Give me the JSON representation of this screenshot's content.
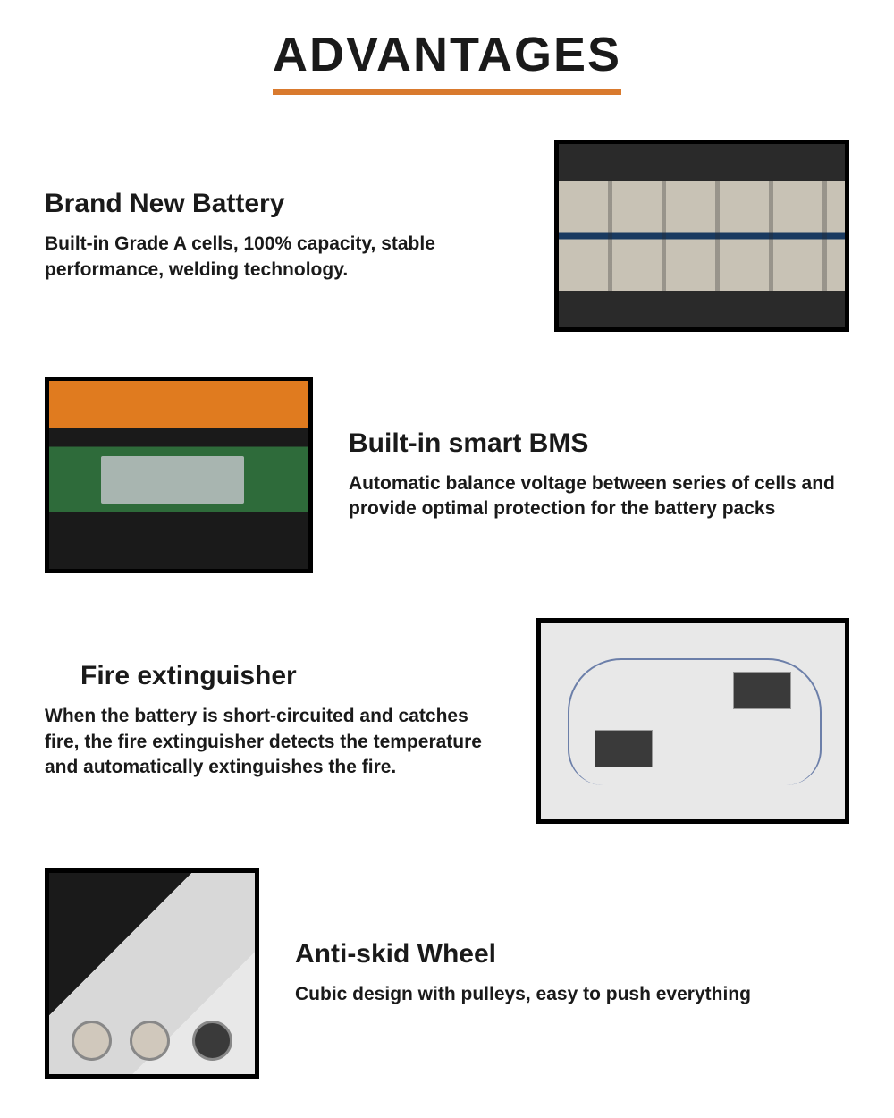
{
  "header": {
    "title": "ADVANTAGES",
    "underline_color": "#d97a2e"
  },
  "features": [
    {
      "title": "Brand New Battery",
      "description": "Built-in Grade A cells, 100% capacity, stable performance, welding technology.",
      "image_alt": "battery-cells-photo"
    },
    {
      "title": "Built-in smart BMS",
      "description": "Automatic balance voltage between series of cells and provide optimal protection for the battery packs",
      "image_alt": "bms-circuit-board-photo"
    },
    {
      "title": "Fire extinguisher",
      "description": "When the battery is short-circuited and catches fire, the fire extinguisher detects the temperature and automatically extinguishes the fire.",
      "image_alt": "fire-extinguisher-modules-photo"
    },
    {
      "title": "Anti-skid Wheel",
      "description": "Cubic design with pulleys, easy to push everything",
      "image_alt": "anti-skid-wheel-photo"
    }
  ],
  "colors": {
    "text": "#1a1a1a",
    "background": "#ffffff",
    "accent": "#d97a2e",
    "border": "#000000"
  },
  "typography": {
    "title_fontsize": 54,
    "heading_fontsize": 30,
    "body_fontsize": 21,
    "font_family": "Arial"
  }
}
